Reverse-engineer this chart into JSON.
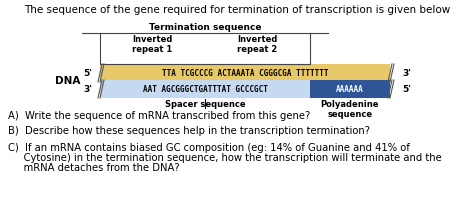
{
  "title": "The sequence of the gene required for termination of transcription is given below",
  "title_fontsize": 7.5,
  "dna_label": "DNA",
  "termination_label": "Termination sequence",
  "inverted1_label": "Inverted\nrepeat 1",
  "inverted2_label": "Inverted\nrepeat 2",
  "spacer_label": "Spacer sequence",
  "polyadenine_label": "Polyadenine\nsequence",
  "strand1_seq": "TTA TCGCCCG ACTAAATA CGGGCGA TTTTTTT",
  "strand2_seq_light": "AAT AGCGGGCTGATTTAT GCCCGCT",
  "strand2_seq_dark": "AAAAAA",
  "qa": "A)  Write the sequence of mRNA transcribed from this gene?",
  "qb": "B)  Describe how these sequences help in the transcription termination?",
  "qc1": "C)  If an mRNA contains biased GC composition (eg: 14% of Guanine and 41% of",
  "qc2": "     Cytosine) in the termination sequence, how the transcription will terminate and the",
  "qc3": "     mRNA detaches from the DNA?",
  "bg_color": "#ffffff",
  "text_color": "#000000",
  "strand1_bg": "#e8c96a",
  "strand2_bg_left": "#c5d9f1",
  "strand2_bg_right": "#2f5597",
  "box_color": "#444444",
  "seq_fontsize": 5.5,
  "label_fontsize": 6.0,
  "qa_fontsize": 7.2
}
